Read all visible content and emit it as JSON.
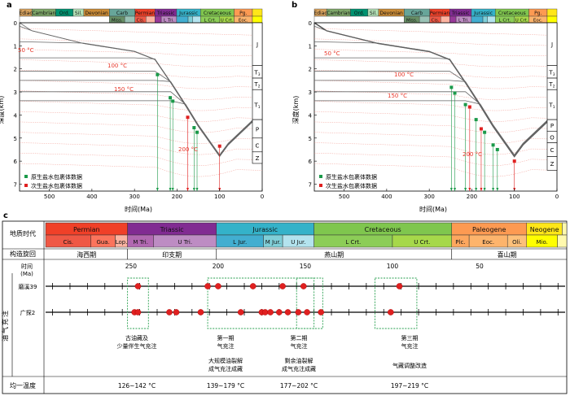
{
  "panel_a": {
    "label": "a",
    "eras": [
      {
        "name": "Ediac",
        "from": 570,
        "to": 541,
        "color": "#d9a35e"
      },
      {
        "name": "Cambrian",
        "from": 541,
        "to": 485,
        "color": "#7fa86a"
      },
      {
        "name": "Ord.",
        "from": 485,
        "to": 444,
        "color": "#009270"
      },
      {
        "name": "Sil.",
        "from": 444,
        "to": 419,
        "color": "#b3e1b6"
      },
      {
        "name": "Devonian",
        "from": 419,
        "to": 359,
        "color": "#cb8c37"
      },
      {
        "name": "Carb",
        "from": 359,
        "to": 299,
        "color": "#67a599"
      },
      {
        "name": "Permian",
        "from": 299,
        "to": 252,
        "color": "#f04028"
      },
      {
        "name": "Triassic",
        "from": 252,
        "to": 201,
        "color": "#812b92"
      },
      {
        "name": "Jurassic",
        "from": 201,
        "to": 145,
        "color": "#34b2c9"
      },
      {
        "name": "Cretaceous",
        "from": 145,
        "to": 66,
        "color": "#7fc64e"
      },
      {
        "name": "Pg.",
        "from": 66,
        "to": 23,
        "color": "#fd9a52"
      },
      {
        "name": "",
        "from": 23,
        "to": 0,
        "color": "#ffe619"
      }
    ],
    "subeps": [
      {
        "name": "Miss.",
        "from": 359,
        "to": 323,
        "color": "#678f66"
      },
      {
        "name": "",
        "from": 323,
        "to": 299,
        "color": "#99c2b5"
      },
      {
        "name": "Cis.",
        "from": 299,
        "to": 273,
        "color": "#ef5845"
      },
      {
        "name": "",
        "from": 273,
        "to": 252,
        "color": "#fcb4a2"
      },
      {
        "name": "",
        "from": 252,
        "to": 237,
        "color": "#983999"
      },
      {
        "name": "L Tri.",
        "from": 237,
        "to": 201,
        "color": "#bd8cc3"
      },
      {
        "name": "",
        "from": 201,
        "to": 174,
        "color": "#42aed0"
      },
      {
        "name": "",
        "from": 174,
        "to": 163,
        "color": "#80cfd8"
      },
      {
        "name": "",
        "from": 163,
        "to": 145,
        "color": "#b3e3ee"
      },
      {
        "name": "L Crt.",
        "from": 145,
        "to": 100,
        "color": "#8ccd57"
      },
      {
        "name": "U Crt.",
        "from": 100,
        "to": 66,
        "color": "#a6d84a"
      },
      {
        "name": "Eoc.",
        "from": 66,
        "to": 23,
        "color": "#fdb46c"
      },
      {
        "name": "",
        "from": 23,
        "to": 0,
        "color": "#ffff00"
      }
    ],
    "y_axis_title": "深度(km)",
    "x_axis_title": "时间(Ma)",
    "x_ticks": [
      "500",
      "400",
      "300",
      "200",
      "100",
      "0"
    ],
    "y_ticks": [
      "0",
      "1",
      "2",
      "3",
      "4",
      "5",
      "6",
      "7"
    ],
    "strata": [
      "J",
      "T3",
      "T2",
      "T1",
      "P",
      "C",
      "Z"
    ],
    "temp_labels": [
      "50 °C",
      "100 °C",
      "150 °C",
      "200 °C"
    ],
    "legend": [
      "原生盐水包裹体数据",
      "次生盐水包裹体数据"
    ]
  },
  "panel_b": {
    "label": "b",
    "strata": [
      "J",
      "T3",
      "T2",
      "T1",
      "P",
      "O",
      "C",
      "Z"
    ],
    "temp_labels": [
      "50 °C",
      "100 °C",
      "150 °C",
      "200 °C"
    ]
  },
  "panel_c": {
    "label": "c",
    "row_labels": {
      "era": "地质时代",
      "cycle": "构造旋回",
      "time": "时间",
      "time_unit": "(Ma)",
      "side": "油气充注",
      "wells": [
        "磨溪39",
        "广探2"
      ],
      "temp": "均一温度"
    },
    "periods": [
      {
        "name": "Permian",
        "from": 299,
        "to": 252,
        "color": "#f04028"
      },
      {
        "name": "Triassic",
        "from": 252,
        "to": 201,
        "color": "#812b92"
      },
      {
        "name": "Jurassic",
        "from": 201,
        "to": 145,
        "color": "#34b2c9"
      },
      {
        "name": "Cretaceous",
        "from": 145,
        "to": 66,
        "color": "#7fc64e"
      },
      {
        "name": "Paleogene",
        "from": 66,
        "to": 23,
        "color": "#fd9a52"
      },
      {
        "name": "Neogene",
        "from": 23,
        "to": 2.6,
        "color": "#ffe619"
      }
    ],
    "epochs": [
      {
        "name": "Cis.",
        "from": 299,
        "to": 273,
        "color": "#ef5845"
      },
      {
        "name": "Gua.",
        "from": 273,
        "to": 259,
        "color": "#fb745c"
      },
      {
        "name": "Lop.",
        "from": 259,
        "to": 252,
        "color": "#fcb4a2"
      },
      {
        "name": "M Tri.",
        "from": 252,
        "to": 237,
        "color": "#b168b1"
      },
      {
        "name": "U Tri.",
        "from": 237,
        "to": 201,
        "color": "#bd8cc3"
      },
      {
        "name": "L Jur.",
        "from": 201,
        "to": 174,
        "color": "#42aed0"
      },
      {
        "name": "M Jur.",
        "from": 174,
        "to": 163,
        "color": "#80cfd8"
      },
      {
        "name": "U Jur.",
        "from": 163,
        "to": 145,
        "color": "#b3e3ee"
      },
      {
        "name": "L Crt.",
        "from": 145,
        "to": 100,
        "color": "#8ccd57"
      },
      {
        "name": "U Crt.",
        "from": 100,
        "to": 66,
        "color": "#a6d84a"
      },
      {
        "name": "Plc.",
        "from": 66,
        "to": 56,
        "color": "#fda75f"
      },
      {
        "name": "Eoc.",
        "from": 56,
        "to": 34,
        "color": "#fdb46c"
      },
      {
        "name": "Oli.",
        "from": 34,
        "to": 23,
        "color": "#fdc07a"
      },
      {
        "name": "Mio.",
        "from": 23,
        "to": 5.3,
        "color": "#ffff00"
      }
    ],
    "cycles": [
      {
        "name": "海西期",
        "from": 299,
        "to": 252
      },
      {
        "name": "印支期",
        "from": 252,
        "to": 201
      },
      {
        "name": "燕山期",
        "from": 201,
        "to": 66
      },
      {
        "name": "喜山期",
        "from": 66,
        "to": 2.6
      }
    ],
    "time_ticks": [
      {
        "label": "250",
        "v": 250
      },
      {
        "label": "200",
        "v": 200
      },
      {
        "label": "150",
        "v": 150
      },
      {
        "label": "100",
        "v": 100
      },
      {
        "label": "50",
        "v": 50
      }
    ],
    "charge_points": {
      "磨溪39": [
        246,
        206,
        200,
        180,
        163,
        151,
        96
      ],
      "广探2": [
        248,
        246,
        228,
        224,
        210,
        187,
        175,
        173,
        170,
        165,
        160,
        154,
        149,
        141,
        101
      ]
    },
    "events": [
      {
        "line1": "古油藏及",
        "line2": "少量伴生气充注",
        "extra1": "",
        "extra2": ""
      },
      {
        "line1": "第一期",
        "line2": "气充注",
        "extra1": "大规模油裂解",
        "extra2": "成气充注成藏"
      },
      {
        "line1": "第二期",
        "line2": "气充注",
        "extra1": "剩余油裂解",
        "extra2": "成气充注成藏"
      },
      {
        "line1": "第三期",
        "line2": "气充注",
        "extra1": "气藏调整改造",
        "extra2": ""
      }
    ],
    "temps": [
      "126~142 °C",
      "139~179 °C",
      "177~202 °C",
      "197~219 °C"
    ]
  }
}
